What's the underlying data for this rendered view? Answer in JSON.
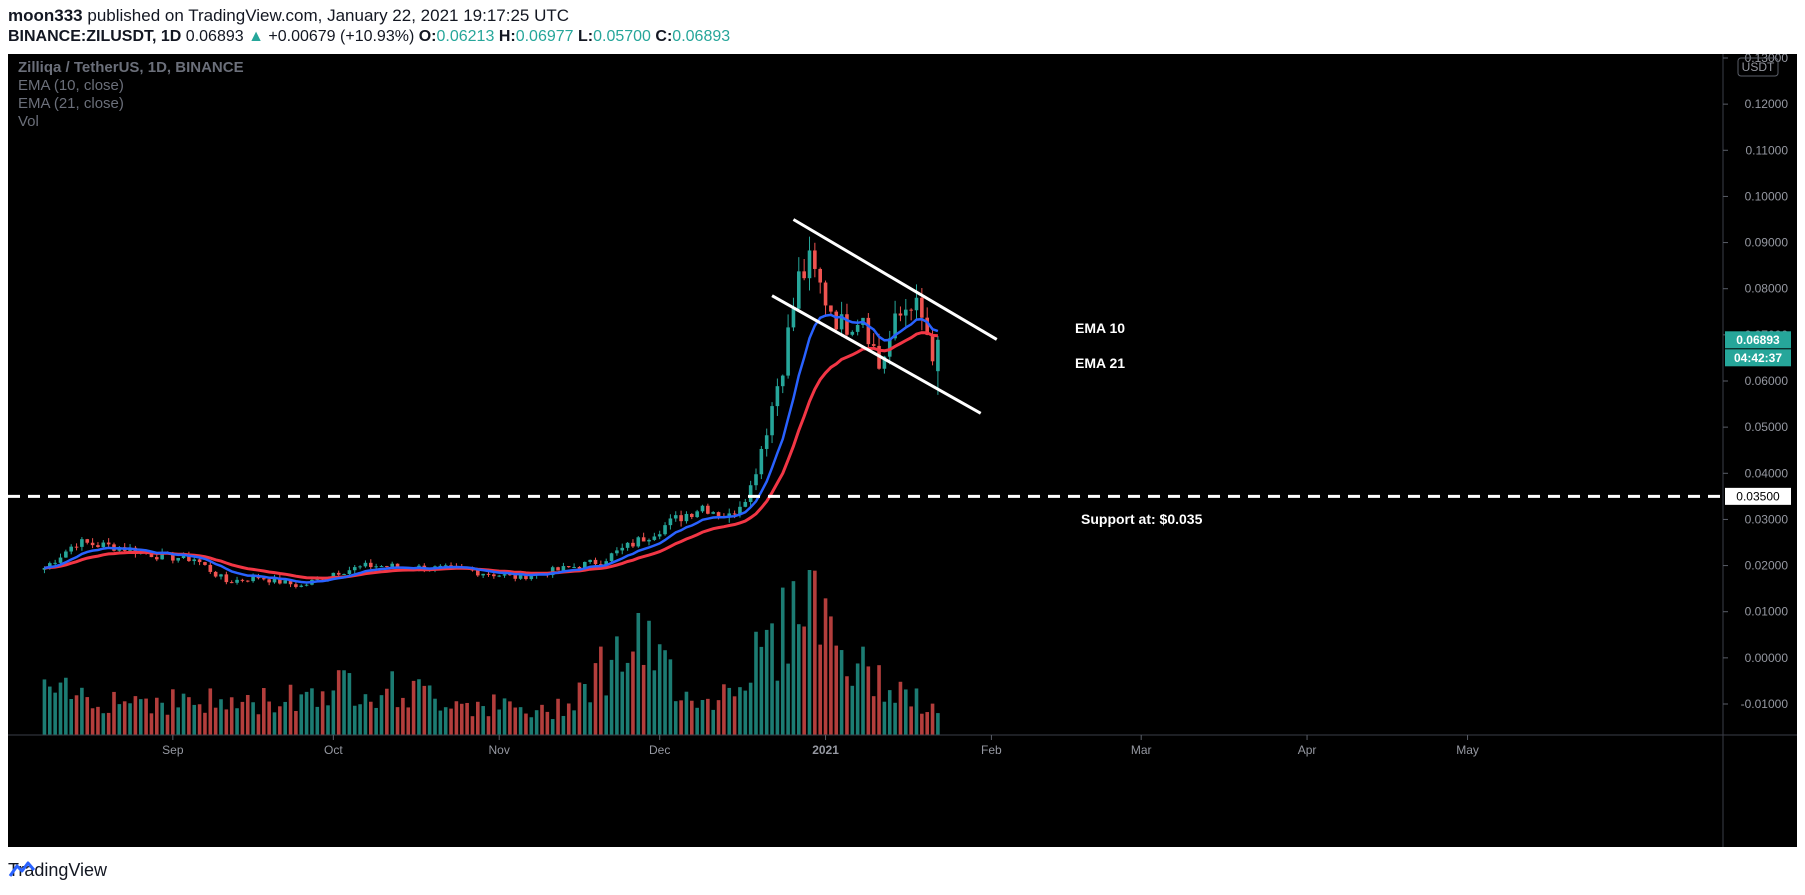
{
  "header": {
    "author": "moon333",
    "published_text": "published on TradingView.com, January 22, 2021 19:17:25 UTC",
    "symbol": "BINANCE:ZILUSDT, 1D",
    "last": "0.06893",
    "change": "+0.00679 (+10.93%)",
    "o_label": "O:",
    "o_val": "0.06213",
    "h_label": "H:",
    "h_val": "0.06977",
    "l_label": "L:",
    "l_val": "0.05700",
    "c_label": "C:",
    "c_val": "0.06893"
  },
  "legend": {
    "title": "Zilliqa / TetherUS, 1D, BINANCE",
    "ema10": "EMA (10, close)",
    "ema21": "EMA (21, close)",
    "vol": "Vol"
  },
  "price_axis": {
    "currency": "USDT",
    "ticks": [
      "0.13000",
      "0.12000",
      "0.11000",
      "0.10000",
      "0.09000",
      "0.08000",
      "0.07000",
      "0.06000",
      "0.05000",
      "0.04000",
      "0.03000",
      "0.02000",
      "0.01000",
      "0.00000",
      "-0.01000"
    ],
    "last_price_tag": "0.06893",
    "countdown_tag": "04:42:37",
    "support_tag": "0.03500"
  },
  "time_axis": {
    "labels": [
      "Sep",
      "Oct",
      "Nov",
      "Dec",
      "2021",
      "Feb",
      "Mar",
      "Apr",
      "May"
    ]
  },
  "annotations": {
    "ema10_label": "EMA 10",
    "ema21_label": "EMA 21",
    "support_label": "Support at: $0.035"
  },
  "colors": {
    "up": "#26a69a",
    "down": "#ef5350",
    "ema10": "#2962ff",
    "ema21": "#f23645",
    "background": "#000000"
  },
  "footer": {
    "brand": "TradingView"
  },
  "chart_data": {
    "type": "candlestick",
    "support_level": 0.035,
    "ylim": [
      -0.01,
      0.13
    ],
    "channel": {
      "upper": [
        {
          "date": "2020-12-26",
          "price": 0.095
        },
        {
          "date": "2021-02-02",
          "price": 0.069
        }
      ],
      "lower": [
        {
          "date": "2020-12-22",
          "price": 0.0785
        },
        {
          "date": "2021-01-30",
          "price": 0.053
        }
      ]
    },
    "close_path": [
      {
        "date": "2020-08-08",
        "close": 0.0195
      },
      {
        "date": "2020-08-14",
        "close": 0.025
      },
      {
        "date": "2020-08-22",
        "close": 0.024
      },
      {
        "date": "2020-08-30",
        "close": 0.022
      },
      {
        "date": "2020-09-05",
        "close": 0.0215
      },
      {
        "date": "2020-09-11",
        "close": 0.0165
      },
      {
        "date": "2020-09-17",
        "close": 0.0175
      },
      {
        "date": "2020-09-25",
        "close": 0.0155
      },
      {
        "date": "2020-10-01",
        "close": 0.0185
      },
      {
        "date": "2020-10-08",
        "close": 0.02
      },
      {
        "date": "2020-10-18",
        "close": 0.0195
      },
      {
        "date": "2020-10-26",
        "close": 0.019
      },
      {
        "date": "2020-11-04",
        "close": 0.0175
      },
      {
        "date": "2020-11-12",
        "close": 0.019
      },
      {
        "date": "2020-11-20",
        "close": 0.021
      },
      {
        "date": "2020-11-28",
        "close": 0.026
      },
      {
        "date": "2020-12-04",
        "close": 0.03
      },
      {
        "date": "2020-12-09",
        "close": 0.033
      },
      {
        "date": "2020-12-14",
        "close": 0.0305
      },
      {
        "date": "2020-12-18",
        "close": 0.037
      },
      {
        "date": "2020-12-21",
        "close": 0.05
      },
      {
        "date": "2020-12-24",
        "close": 0.064
      },
      {
        "date": "2020-12-27",
        "close": 0.082
      },
      {
        "date": "2020-12-29",
        "close": 0.085
      },
      {
        "date": "2021-01-01",
        "close": 0.078
      },
      {
        "date": "2021-01-04",
        "close": 0.072
      },
      {
        "date": "2021-01-08",
        "close": 0.075
      },
      {
        "date": "2021-01-11",
        "close": 0.063
      },
      {
        "date": "2021-01-14",
        "close": 0.072
      },
      {
        "date": "2021-01-17",
        "close": 0.078
      },
      {
        "date": "2021-01-20",
        "close": 0.07
      },
      {
        "date": "2021-01-21",
        "close": 0.062
      },
      {
        "date": "2021-01-22",
        "close": 0.06893
      }
    ],
    "volume_profile": [
      {
        "date": "2020-08-08",
        "vol": 4
      },
      {
        "date": "2020-09-15",
        "vol": 3
      },
      {
        "date": "2020-10-05",
        "vol": 5
      },
      {
        "date": "2020-11-10",
        "vol": 2
      },
      {
        "date": "2020-11-26",
        "vol": 9
      },
      {
        "date": "2020-12-10",
        "vol": 3
      },
      {
        "date": "2020-12-24",
        "vol": 10
      },
      {
        "date": "2020-12-28",
        "vol": 16
      },
      {
        "date": "2021-01-05",
        "vol": 7
      },
      {
        "date": "2021-01-22",
        "vol": 2
      }
    ]
  }
}
